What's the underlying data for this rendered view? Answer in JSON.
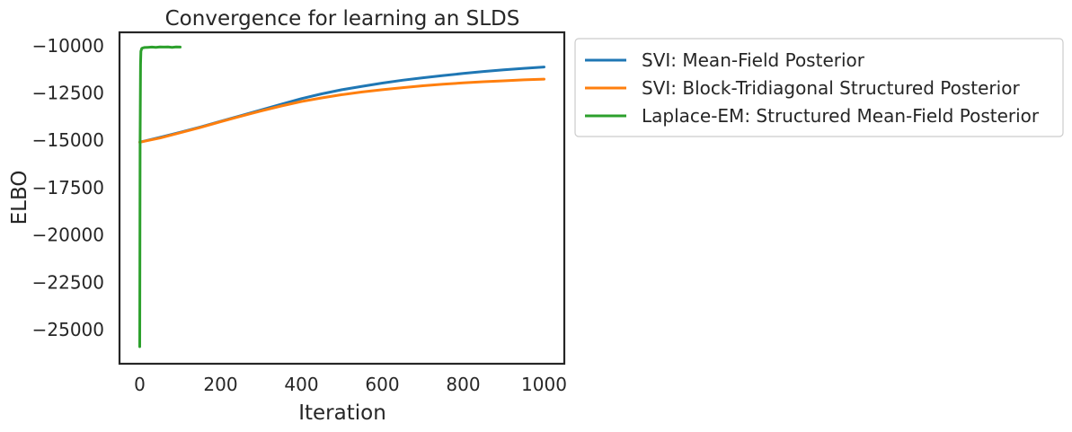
{
  "chart_data": {
    "type": "line",
    "title": "Convergence for learning an SLDS",
    "xlabel": "Iteration",
    "ylabel": "ELBO",
    "xlim": [
      -50,
      1050
    ],
    "ylim": [
      -26800,
      -9300
    ],
    "xticks": [
      0,
      200,
      400,
      600,
      800,
      1000
    ],
    "yticks": [
      -25000,
      -22500,
      -20000,
      -17500,
      -15000,
      -12500,
      -10000
    ],
    "xtick_labels": [
      "0",
      "200",
      "400",
      "600",
      "800",
      "1000"
    ],
    "ytick_labels": [
      "−25000",
      "−22500",
      "−20000",
      "−17500",
      "−15000",
      "−12500",
      "−10000"
    ],
    "grid": false,
    "legend_placement": "outside upper-right",
    "series": [
      {
        "name": "SVI: Mean-Field Posterior",
        "color": "#1f77b4",
        "x": [
          0,
          50,
          100,
          150,
          200,
          250,
          300,
          350,
          400,
          450,
          500,
          550,
          600,
          650,
          700,
          750,
          800,
          850,
          900,
          950,
          1000
        ],
        "y": [
          -15100,
          -14850,
          -14580,
          -14300,
          -14000,
          -13700,
          -13400,
          -13100,
          -12800,
          -12550,
          -12330,
          -12150,
          -11980,
          -11830,
          -11700,
          -11580,
          -11470,
          -11370,
          -11280,
          -11200,
          -11130
        ]
      },
      {
        "name": "SVI: Block-Tridiagonal Structured Posterior",
        "color": "#ff7f0e",
        "x": [
          0,
          50,
          100,
          150,
          200,
          250,
          300,
          350,
          400,
          450,
          500,
          550,
          600,
          650,
          700,
          750,
          800,
          850,
          900,
          950,
          1000
        ],
        "y": [
          -15100,
          -14880,
          -14600,
          -14320,
          -14020,
          -13730,
          -13450,
          -13190,
          -12950,
          -12760,
          -12590,
          -12450,
          -12330,
          -12220,
          -12120,
          -12040,
          -11970,
          -11910,
          -11860,
          -11810,
          -11770
        ]
      },
      {
        "name": "Laplace-EM: Structured Mean-Field Posterior",
        "color": "#2ca02c",
        "x": [
          0,
          1,
          2,
          3,
          5,
          8,
          12,
          20,
          30,
          40,
          50,
          60,
          70,
          80,
          90,
          100
        ],
        "y": [
          -25900,
          -15200,
          -11000,
          -10300,
          -10150,
          -10120,
          -10100,
          -10090,
          -10080,
          -10090,
          -10070,
          -10080,
          -10070,
          -10090,
          -10070,
          -10080
        ]
      }
    ]
  }
}
